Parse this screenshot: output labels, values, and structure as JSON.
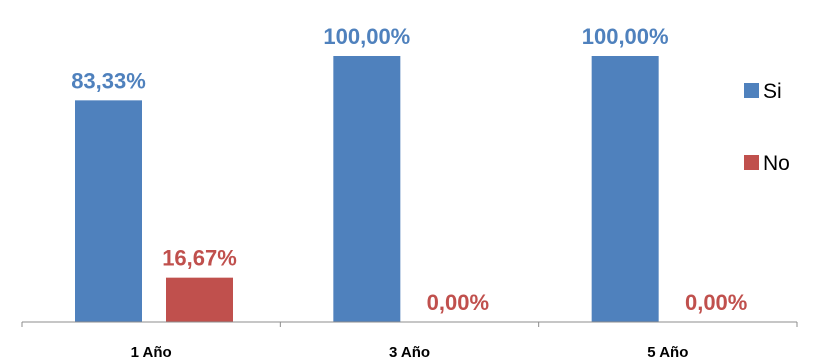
{
  "chart_data": {
    "type": "bar",
    "categories": [
      "1 Año",
      "3 Año",
      "5 Año"
    ],
    "series": [
      {
        "name": "Si",
        "values": [
          83.33,
          100.0,
          100.0
        ],
        "labels": [
          "83,33%",
          "100,00%",
          "100,00%"
        ],
        "color": "#4F81BD"
      },
      {
        "name": "No",
        "values": [
          16.67,
          0.0,
          0.0
        ],
        "labels": [
          "16,67%",
          "0,00%",
          "0,00%"
        ],
        "color": "#C0504D"
      }
    ],
    "ylim": [
      0,
      100
    ],
    "grid": false,
    "legend_position": "right"
  }
}
